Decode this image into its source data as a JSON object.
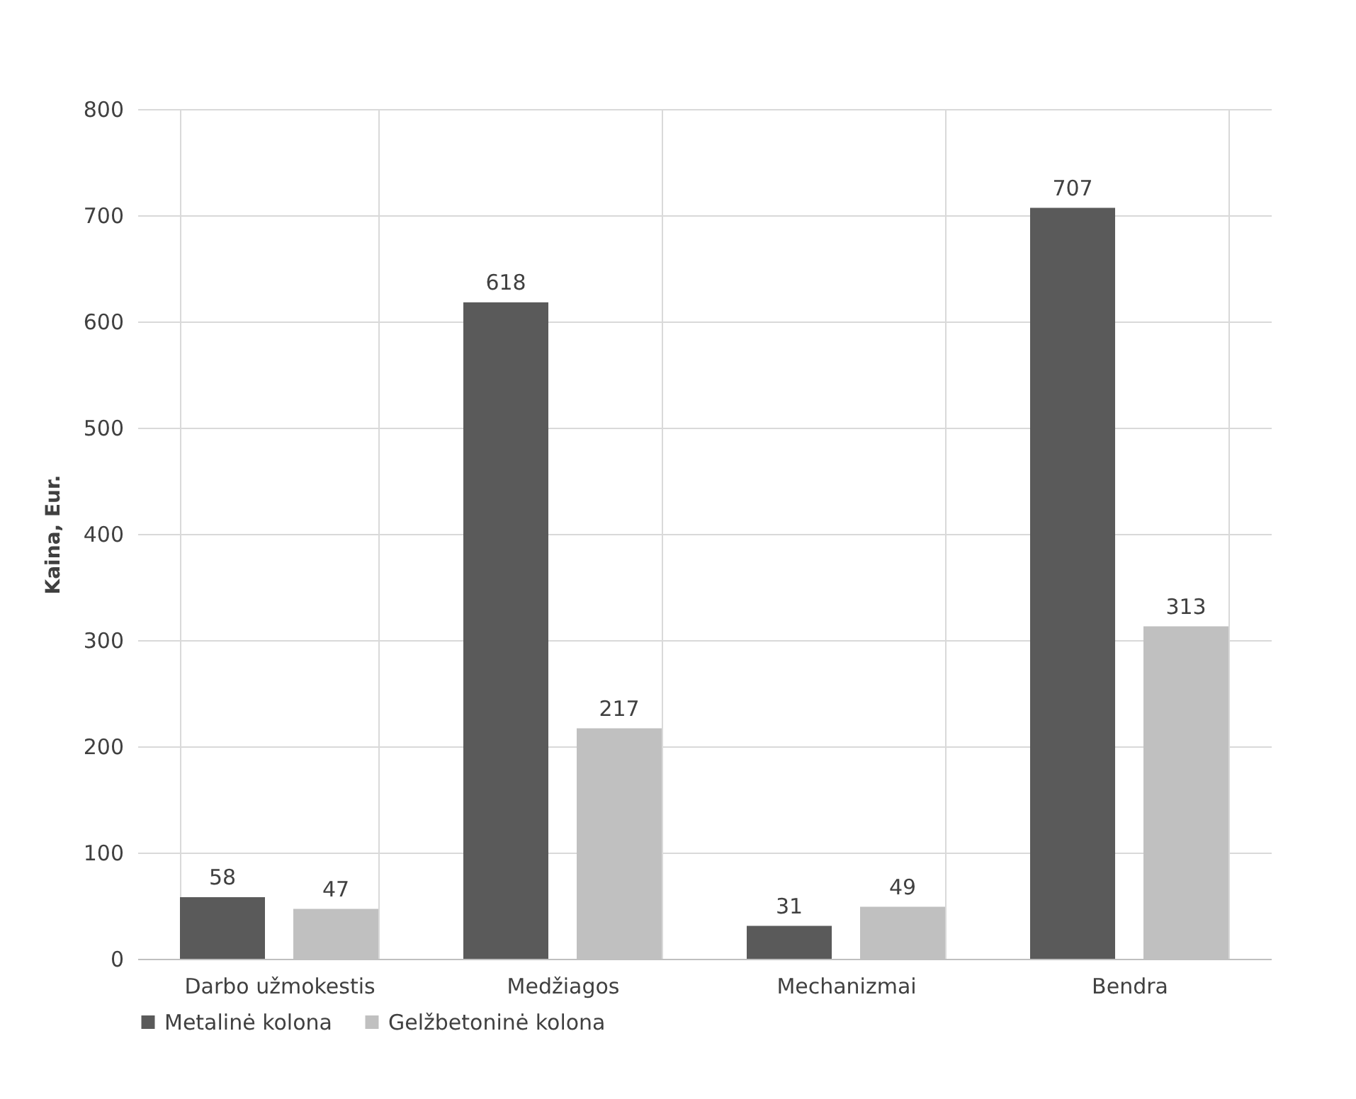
{
  "chart_data": {
    "type": "bar",
    "ylabel": "Kaina, Eur.",
    "categories": [
      "Darbo užmokestis",
      "Medžiagos",
      "Mechanizmai",
      "Bendra"
    ],
    "series": [
      {
        "name": "Metalinė kolona",
        "color": "#5a5a5a",
        "values": [
          58,
          618,
          31,
          707
        ]
      },
      {
        "name": "Gelžbetoninė kolona",
        "color": "#c0c0c0",
        "values": [
          47,
          217,
          49,
          313
        ]
      }
    ],
    "ylim": [
      0,
      800
    ],
    "yticks": [
      0,
      100,
      200,
      300,
      400,
      500,
      600,
      700,
      800
    ],
    "data_labels": true,
    "grid": true,
    "legend": "bottom"
  }
}
